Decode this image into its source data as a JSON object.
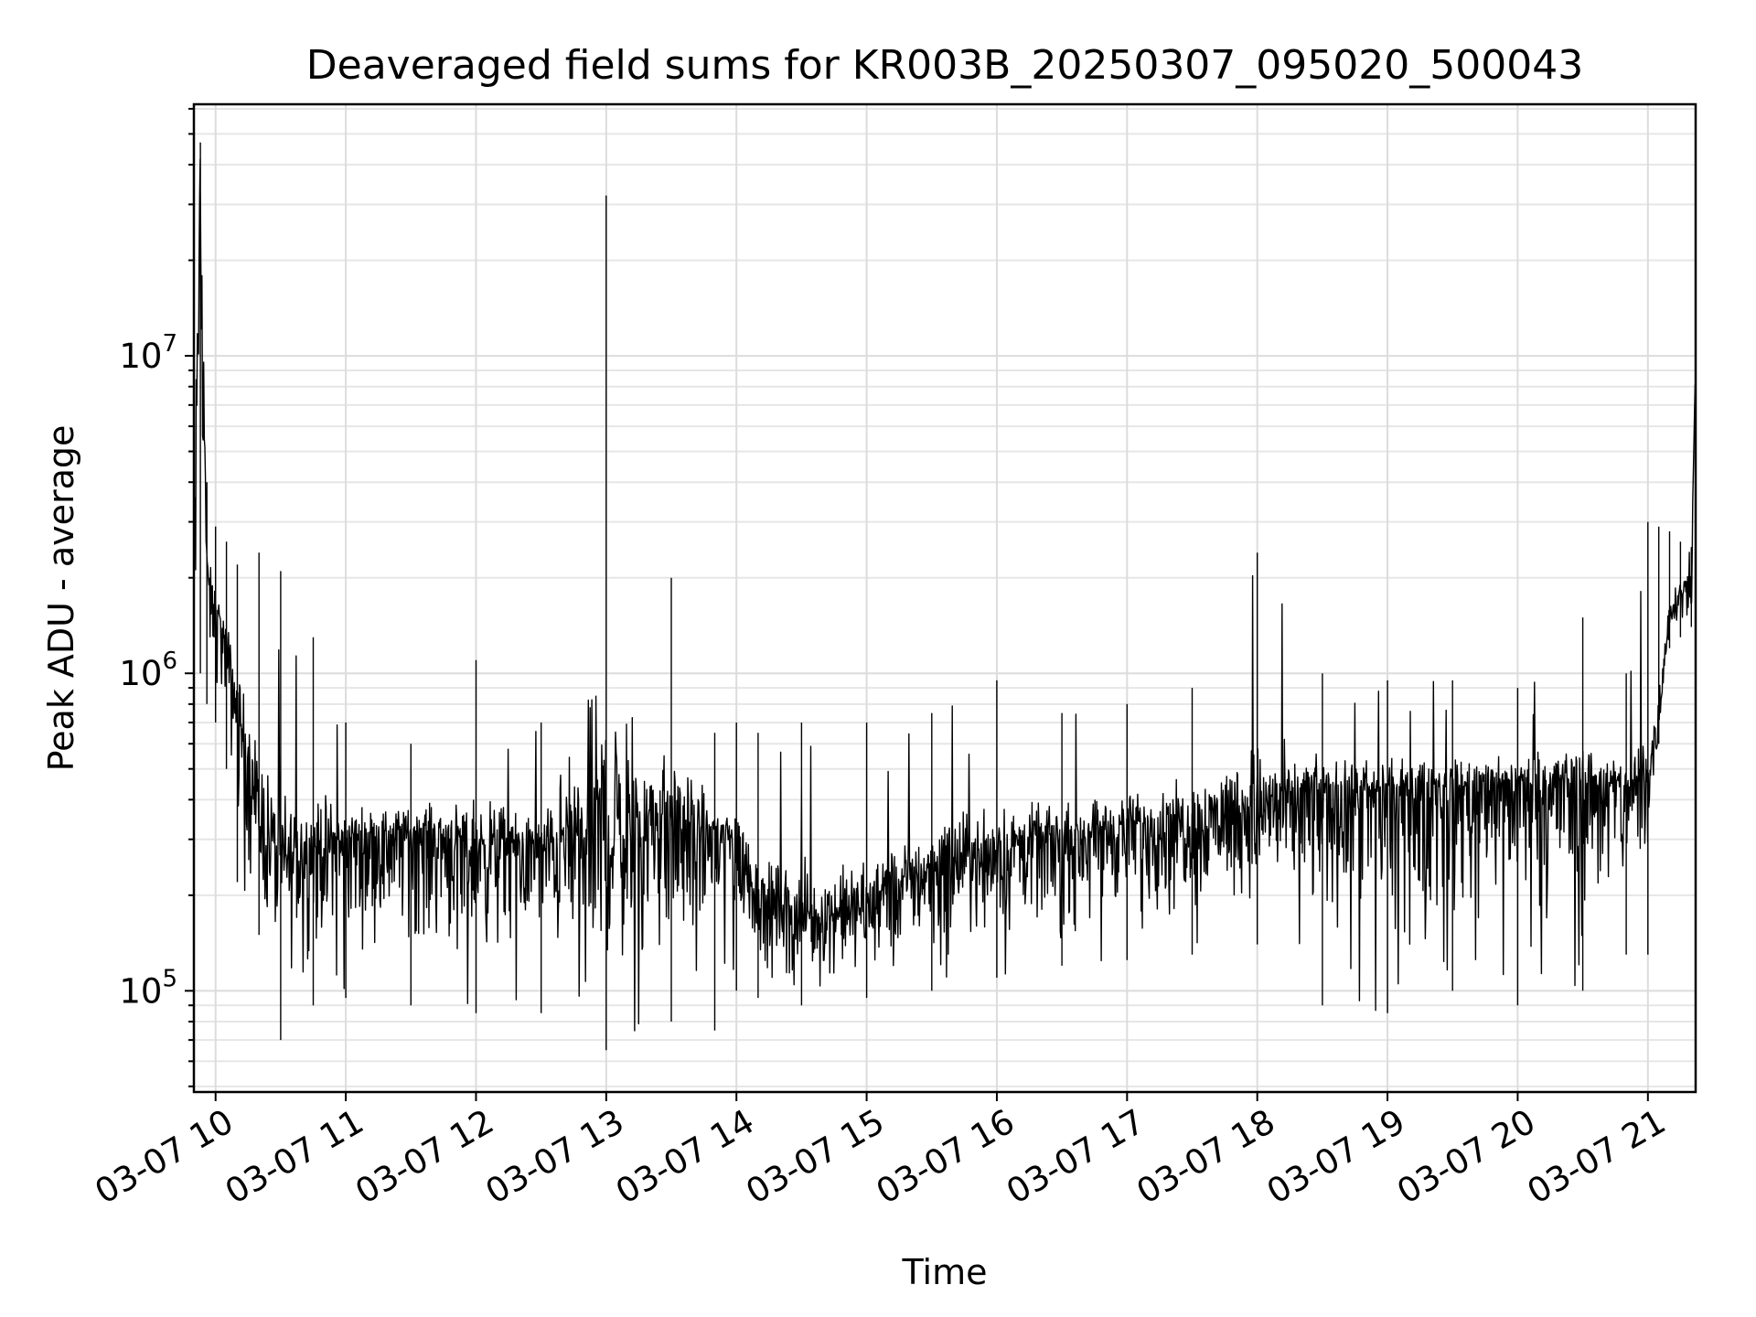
{
  "chart_data": {
    "type": "line",
    "title": "Deaveraged field sums for KR003B_20250307_095020_500043",
    "xlabel": "Time",
    "ylabel": "Peak ADU - average",
    "yscale": "log",
    "xlim": [
      "03-07 09:50",
      "03-07 21:22"
    ],
    "ylim": [
      48000,
      62000000
    ],
    "grid": true,
    "x_ticks": [
      "03-07 10",
      "03-07 11",
      "03-07 12",
      "03-07 13",
      "03-07 14",
      "03-07 15",
      "03-07 16",
      "03-07 17",
      "03-07 18",
      "03-07 19",
      "03-07 20",
      "03-07 21"
    ],
    "y_ticks": [
      {
        "base": "10",
        "exp": "5",
        "value": 100000
      },
      {
        "base": "10",
        "exp": "6",
        "value": 1000000
      },
      {
        "base": "10",
        "exp": "7",
        "value": 10000000
      }
    ],
    "series": [
      {
        "color": "#000000",
        "x": [
          "03-07 09:50",
          "03-07 09:53",
          "03-07 09:56",
          "03-07 10:00",
          "03-07 10:05",
          "03-07 10:10",
          "03-07 10:20",
          "03-07 10:30",
          "03-07 10:45",
          "03-07 11:00",
          "03-07 11:30",
          "03-07 12:00",
          "03-07 12:30",
          "03-07 13:00",
          "03-07 13:30",
          "03-07 13:50",
          "03-07 14:00",
          "03-07 14:10",
          "03-07 14:30",
          "03-07 15:00",
          "03-07 15:30",
          "03-07 16:00",
          "03-07 16:30",
          "03-07 17:00",
          "03-07 17:30",
          "03-07 18:00",
          "03-07 18:30",
          "03-07 19:00",
          "03-07 19:30",
          "03-07 20:00",
          "03-07 20:30",
          "03-07 20:50",
          "03-07 21:00",
          "03-07 21:05",
          "03-07 21:10",
          "03-07 21:15",
          "03-07 21:20",
          "03-07 21:22"
        ],
        "y": [
          1500000,
          45000000,
          2000000,
          1600000,
          1200000,
          800000,
          350000,
          250000,
          280000,
          300000,
          320000,
          290000,
          280000,
          300000,
          340000,
          320000,
          300000,
          200000,
          170000,
          180000,
          250000,
          280000,
          300000,
          330000,
          350000,
          380000,
          420000,
          430000,
          440000,
          450000,
          450000,
          430000,
          450000,
          700000,
          1600000,
          1800000,
          2000000,
          10000000
        ],
        "min": [
          330000,
          1000000,
          800000,
          700000,
          500000,
          220000,
          150000,
          70000,
          90000,
          95000,
          90000,
          85000,
          85000,
          65000,
          80000,
          75000,
          100000,
          95000,
          90000,
          95000,
          100000,
          110000,
          120000,
          125000,
          130000,
          140000,
          90000,
          85000,
          100000,
          90000,
          100000,
          130000,
          130000,
          600000,
          1200000,
          1300000,
          1400000,
          1500000
        ],
        "max": [
          45000000,
          47000000,
          4000000,
          2900000,
          2600000,
          2200000,
          2400000,
          2100000,
          1300000,
          700000,
          600000,
          1100000,
          700000,
          32000000,
          2000000,
          650000,
          700000,
          650000,
          700000,
          700000,
          750000,
          950000,
          750000,
          800000,
          900000,
          2400000,
          1000000,
          950000,
          950000,
          900000,
          1500000,
          1000000,
          3000000,
          2900000,
          2800000,
          2600000,
          2500000,
          10000000
        ]
      }
    ]
  }
}
